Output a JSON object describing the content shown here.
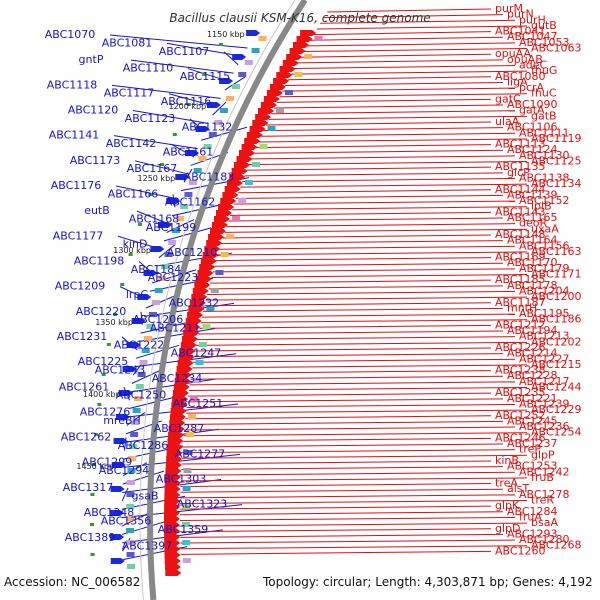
{
  "title": "Bacillus clausii KSM-K16, complete genome",
  "accession_label": "Accession: NC_006582",
  "summary_label": "Topology: circular; Length: 4,303,871 bp; Genes: 4,192",
  "colors": {
    "left": "#1515cc",
    "right": "#dd1111",
    "backbone": "#888888",
    "arrow_blue": "#1a2ad8",
    "arrow_red": "#ee1111"
  },
  "scale_ticks": [
    "1150 kbp",
    "1200 kbp",
    "1250 kbp",
    "1300 kbp",
    "1350 kbp",
    "1400 kbp",
    "1450 kbp"
  ],
  "left_labels": [
    "ABC1070",
    "ABC1081",
    "ABC1107",
    "gntP",
    "ABC1110",
    "ABC1115",
    "ABC1118",
    "ABC1117",
    "ABC1116",
    "ABC1120",
    "ABC1123",
    "ABC1132",
    "ABC1141",
    "ABC1142",
    "ABC1161",
    "ABC1173",
    "ABC1167",
    "ABC1183",
    "ABC1176",
    "ABC1166",
    "ABC1162",
    "eutB",
    "ABC1168",
    "ABC1199",
    "ABC1177",
    "kinD",
    "ABC1210",
    "ABC1198",
    "ABC1184",
    "ABC1223",
    "ABC1209",
    "lrpC",
    "ABC1232",
    "ABC1220",
    "ABC1206",
    "ABC1211",
    "ABC1231",
    "ABC1222",
    "ABC1247",
    "ABC1225",
    "ABC1243",
    "ABC1234",
    "ABC1261",
    "ABC1250",
    "ABC1251",
    "ABC1276",
    "mreBH",
    "ABC1287",
    "ABC1262",
    "ABC1286",
    "ABC1277",
    "ABC1299",
    "ABC1294",
    "ABC1303",
    "ABC1317",
    "gsaB",
    "ABC1323",
    "ABC1348",
    "ABC1356",
    "ABC1359",
    "ABC1389",
    "ABC1397"
  ],
  "right_labels": [
    "purM",
    "purN",
    "purH",
    "gutB",
    "ABC1041",
    "ABC1047",
    "ABC1053",
    "ABC1063",
    "opuAA",
    "opuAB",
    "adeC",
    "fhuG",
    "ABC1080",
    "ligA",
    "pcrA",
    "fhuC",
    "gatC",
    "ABC1090",
    "gatA",
    "gatB",
    "ulaA",
    "ABC1106",
    "ABC1111",
    "ABC1119",
    "ABC1113",
    "ABC1124",
    "ABC1130",
    "ABC1125",
    "ABC1135",
    "glcP",
    "ABC1138",
    "ABC1134",
    "ABC1144",
    "ABC1139",
    "ABC1152",
    "lplB",
    "ABC1143",
    "ABC1165",
    "deoR",
    "uxaA",
    "ABC1148",
    "ABC1164",
    "ABC1156",
    "ABC1163",
    "ABC1169",
    "ABC1170",
    "ABC1179",
    "ABC1171",
    "ABC1185",
    "ABC1178",
    "ABC1204",
    "ABC1200",
    "ABC1187",
    "mntH",
    "ABC1195",
    "ABC1186",
    "ABC1212",
    "ABC1194",
    "ABC1213",
    "ABC1202",
    "ABC1226",
    "ABC1214",
    "ABC1227",
    "ABC1215",
    "ABC1238",
    "ABC1228",
    "ABC1217",
    "ABC1244",
    "ABC1235",
    "ABC1221",
    "ABC1239",
    "ABC1229",
    "ABC1252",
    "ABC1245",
    "ABC1236",
    "ABC1254",
    "ABC1246",
    "ABC1237",
    "treP",
    "glpP",
    "kinB",
    "ABC1253",
    "ABC1242",
    "fruB",
    "treA",
    "alsT",
    "ABC1278",
    "treR",
    "glpK",
    "ABC1284",
    "fruA",
    "bsaA",
    "glpD",
    "ABC1293",
    "ABC1280",
    "ABC1268",
    "ABC1260"
  ]
}
